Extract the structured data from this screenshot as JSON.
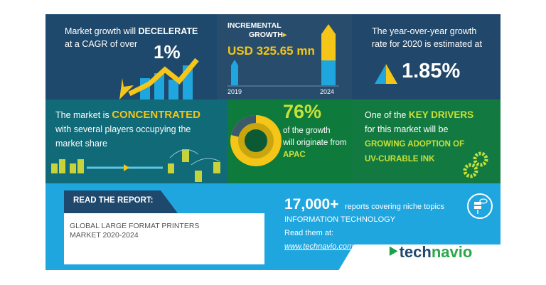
{
  "cagr": {
    "line1": "Market growth will ",
    "emph": "DECELERATE",
    "line2": "at a CAGR of over",
    "value": "1%"
  },
  "incremental": {
    "title1": "INCREMENTAL",
    "title2": "GROWTH",
    "value": "USD 325.65 mn",
    "year_start": "2019",
    "year_end": "2024"
  },
  "yoy": {
    "text1": "The year-over-year growth",
    "text2": "rate for 2020 is estimated at",
    "value": "1.85%"
  },
  "concentration": {
    "pre": "The market is ",
    "emph": "CONCENTRATED",
    "line2": "with several players occupying the",
    "line3": "market share"
  },
  "region": {
    "value": "76%",
    "line1": "of the growth",
    "line2": "will originate from",
    "region": "APAC",
    "share": 0.76
  },
  "drivers": {
    "pre": "One of the ",
    "emph": "KEY DRIVERS",
    "line2": "for this market will be",
    "line3": "GROWING ADOPTION OF",
    "line4": "UV-CURABLE INK"
  },
  "report": {
    "label": "READ THE REPORT:",
    "title1": "GLOBAL LARGE FORMAT PRINTERS",
    "title2": "MARKET  2020-2024"
  },
  "promo": {
    "count": "17,000+",
    "count_text": "reports covering niche topics",
    "category": "INFORMATION TECHNOLOGY",
    "read": "Read them at:",
    "url": "www.technavio.com"
  },
  "brand": {
    "part1": "tech",
    "part2": "navio"
  },
  "colors": {
    "navy": "#1e486c",
    "teal": "#106a78",
    "green": "#0e7a3c",
    "blue": "#1fa6df",
    "yellow": "#f5c518",
    "lime": "#c8e03a"
  }
}
